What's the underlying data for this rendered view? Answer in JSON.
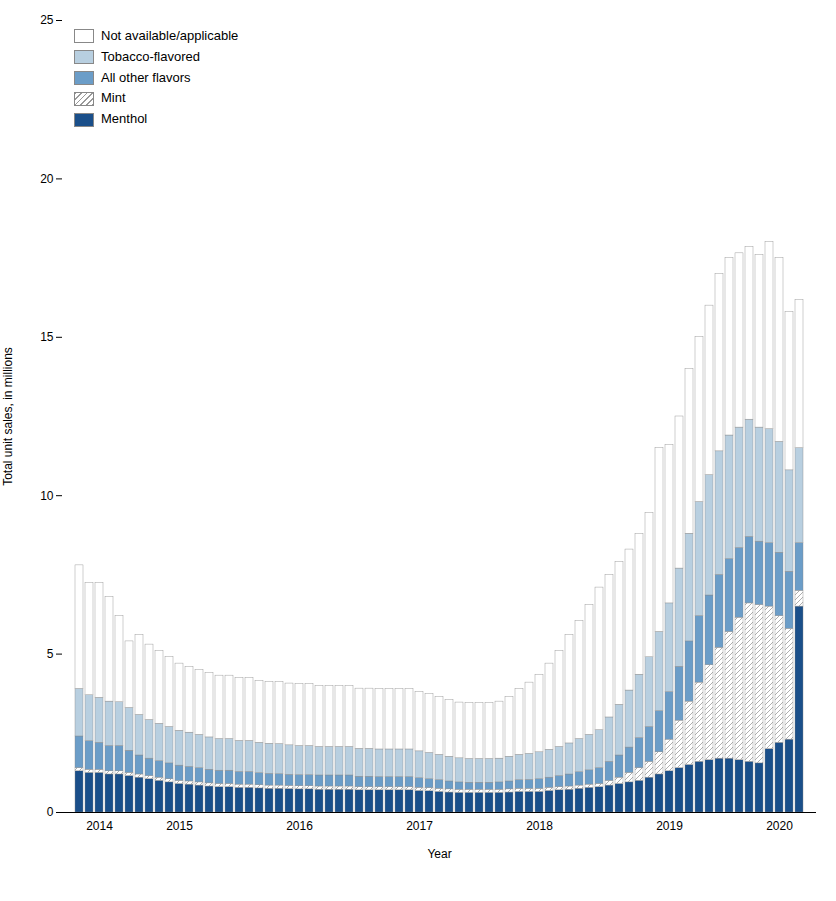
{
  "chart_data": {
    "type": "bar",
    "stacked": true,
    "xlabel": "Year",
    "ylabel": "Total unit sales, in millions",
    "ylim": [
      0,
      25
    ],
    "yticks": [
      0,
      5,
      10,
      15,
      20,
      25
    ],
    "grid": false,
    "legend": "upper left",
    "categories": [
      null,
      null,
      "2014",
      null,
      null,
      null,
      null,
      null,
      null,
      null,
      "2015",
      null,
      null,
      null,
      null,
      null,
      null,
      null,
      null,
      null,
      null,
      null,
      "2016",
      null,
      null,
      null,
      null,
      null,
      null,
      null,
      null,
      null,
      null,
      null,
      "2017",
      null,
      null,
      null,
      null,
      null,
      null,
      null,
      null,
      null,
      null,
      null,
      "2018",
      null,
      null,
      null,
      null,
      null,
      null,
      null,
      null,
      null,
      null,
      null,
      null,
      "2019",
      null,
      null,
      null,
      null,
      null,
      null,
      null,
      null,
      null,
      null,
      "2020",
      null,
      null
    ],
    "series": [
      {
        "name": "Menthol",
        "color": "#1a4f8a",
        "values": [
          1.3,
          1.25,
          1.25,
          1.2,
          1.2,
          1.15,
          1.1,
          1.05,
          1.0,
          0.95,
          0.9,
          0.88,
          0.85,
          0.82,
          0.8,
          0.8,
          0.78,
          0.78,
          0.76,
          0.75,
          0.75,
          0.74,
          0.73,
          0.73,
          0.72,
          0.72,
          0.72,
          0.72,
          0.7,
          0.7,
          0.7,
          0.7,
          0.7,
          0.7,
          0.68,
          0.67,
          0.65,
          0.63,
          0.62,
          0.62,
          0.62,
          0.62,
          0.62,
          0.63,
          0.65,
          0.65,
          0.65,
          0.68,
          0.7,
          0.72,
          0.75,
          0.78,
          0.8,
          0.85,
          0.9,
          0.95,
          1.0,
          1.1,
          1.2,
          1.3,
          1.4,
          1.5,
          1.6,
          1.65,
          1.7,
          1.7,
          1.65,
          1.6,
          1.55,
          2.0,
          2.2,
          2.3,
          6.5
        ]
      },
      {
        "name": "Mint",
        "color": "#ffffff",
        "values": [
          0.1,
          0.1,
          0.1,
          0.1,
          0.1,
          0.1,
          0.1,
          0.1,
          0.1,
          0.1,
          0.1,
          0.1,
          0.1,
          0.1,
          0.1,
          0.1,
          0.1,
          0.1,
          0.1,
          0.1,
          0.1,
          0.1,
          0.1,
          0.1,
          0.1,
          0.1,
          0.1,
          0.1,
          0.1,
          0.1,
          0.1,
          0.1,
          0.1,
          0.1,
          0.1,
          0.1,
          0.1,
          0.1,
          0.1,
          0.1,
          0.1,
          0.1,
          0.1,
          0.1,
          0.1,
          0.1,
          0.1,
          0.1,
          0.1,
          0.1,
          0.1,
          0.1,
          0.1,
          0.15,
          0.2,
          0.3,
          0.4,
          0.5,
          0.7,
          1.0,
          1.5,
          2.0,
          2.5,
          3.0,
          3.5,
          4.0,
          4.5,
          5.0,
          5.0,
          4.5,
          4.0,
          3.5,
          0.5
        ]
      },
      {
        "name": "All other flavors",
        "color": "#6b9dc8",
        "values": [
          1.0,
          0.9,
          0.85,
          0.8,
          0.8,
          0.7,
          0.6,
          0.55,
          0.52,
          0.5,
          0.48,
          0.46,
          0.45,
          0.43,
          0.42,
          0.42,
          0.4,
          0.4,
          0.38,
          0.37,
          0.36,
          0.35,
          0.35,
          0.35,
          0.35,
          0.35,
          0.35,
          0.35,
          0.33,
          0.33,
          0.32,
          0.32,
          0.32,
          0.32,
          0.3,
          0.28,
          0.27,
          0.25,
          0.23,
          0.22,
          0.22,
          0.22,
          0.23,
          0.25,
          0.27,
          0.28,
          0.3,
          0.32,
          0.35,
          0.38,
          0.42,
          0.45,
          0.5,
          0.6,
          0.7,
          0.8,
          0.95,
          1.1,
          1.3,
          1.5,
          1.7,
          1.9,
          2.1,
          2.2,
          2.3,
          2.3,
          2.2,
          2.1,
          2.0,
          2.0,
          2.0,
          1.8,
          1.5
        ]
      },
      {
        "name": "Tobacco-flavored",
        "color": "#b8cfe0",
        "values": [
          1.5,
          1.45,
          1.42,
          1.4,
          1.38,
          1.35,
          1.28,
          1.22,
          1.18,
          1.15,
          1.1,
          1.08,
          1.05,
          1.02,
          1.0,
          1.0,
          0.98,
          0.98,
          0.96,
          0.95,
          0.95,
          0.93,
          0.92,
          0.92,
          0.9,
          0.9,
          0.9,
          0.9,
          0.88,
          0.88,
          0.87,
          0.87,
          0.87,
          0.87,
          0.85,
          0.83,
          0.8,
          0.78,
          0.76,
          0.75,
          0.75,
          0.75,
          0.75,
          0.78,
          0.8,
          0.82,
          0.85,
          0.88,
          0.92,
          0.98,
          1.05,
          1.12,
          1.2,
          1.4,
          1.6,
          1.8,
          2.0,
          2.2,
          2.5,
          2.8,
          3.1,
          3.4,
          3.6,
          3.8,
          3.9,
          3.9,
          3.8,
          3.7,
          3.6,
          3.6,
          3.5,
          3.2,
          3.0
        ]
      },
      {
        "name": "Not available/applicable",
        "color": "#ffffff",
        "values": [
          3.9,
          3.55,
          3.63,
          3.3,
          2.72,
          2.1,
          2.52,
          2.38,
          2.3,
          2.2,
          2.12,
          2.08,
          2.05,
          2.03,
          2.0,
          2.0,
          1.98,
          1.98,
          1.96,
          1.95,
          1.95,
          1.95,
          1.95,
          1.95,
          1.93,
          1.93,
          1.93,
          1.93,
          1.9,
          1.9,
          1.91,
          1.91,
          1.91,
          1.91,
          1.88,
          1.87,
          1.83,
          1.79,
          1.76,
          1.76,
          1.76,
          1.76,
          1.8,
          1.89,
          2.08,
          2.25,
          2.45,
          2.72,
          3.03,
          3.42,
          3.73,
          4.1,
          4.5,
          4.5,
          4.5,
          4.45,
          4.45,
          4.55,
          5.8,
          5.0,
          4.8,
          5.2,
          5.2,
          5.35,
          5.6,
          5.6,
          5.5,
          5.45,
          5.45,
          5.9,
          5.8,
          5.0,
          4.67
        ]
      }
    ]
  }
}
